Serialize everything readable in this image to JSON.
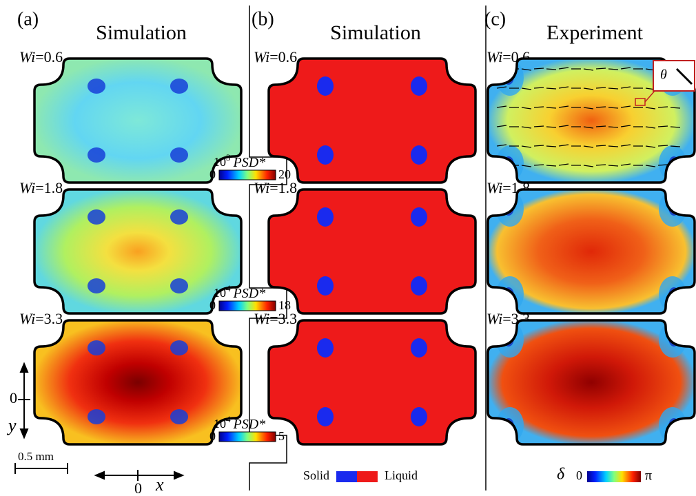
{
  "panels": [
    {
      "label": "(a)",
      "title": "Simulation",
      "rows": [
        {
          "var": "Wi",
          "value": "=0.6"
        },
        {
          "var": "Wi",
          "value": "=1.8"
        },
        {
          "var": "Wi",
          "value": "=3.3"
        }
      ],
      "colorbars": [
        {
          "base": "10",
          "exp": "3",
          "var": "PSD*",
          "min": "0",
          "max": "20"
        },
        {
          "base": "10",
          "exp": "4",
          "var": "PSD*",
          "min": "0",
          "max": "18"
        },
        {
          "base": "10",
          "exp": "4",
          "var": "PSD*",
          "min": "0",
          "max": "5"
        }
      ]
    },
    {
      "label": "(b)",
      "title": "Simulation",
      "rows": [
        {
          "var": "Wi",
          "value": "=0.6"
        },
        {
          "var": "Wi",
          "value": "=1.8"
        },
        {
          "var": "Wi",
          "value": "=3.3"
        }
      ],
      "legend": {
        "solid": "Solid",
        "liquid": "Liquid"
      }
    },
    {
      "label": "(c)",
      "title": "Experiment",
      "rows": [
        {
          "var": "Wi",
          "value": "=0.6"
        },
        {
          "var": "Wi",
          "value": "=1.8"
        },
        {
          "var": "Wi",
          "value": "=3.3"
        }
      ],
      "colorbar": {
        "var": "δ",
        "min": "0",
        "max": "π"
      },
      "inset": "θ"
    }
  ],
  "axes": {
    "y_origin": "0",
    "y": "y",
    "x_origin": "0",
    "x": "x",
    "scale": "0.5 mm"
  }
}
